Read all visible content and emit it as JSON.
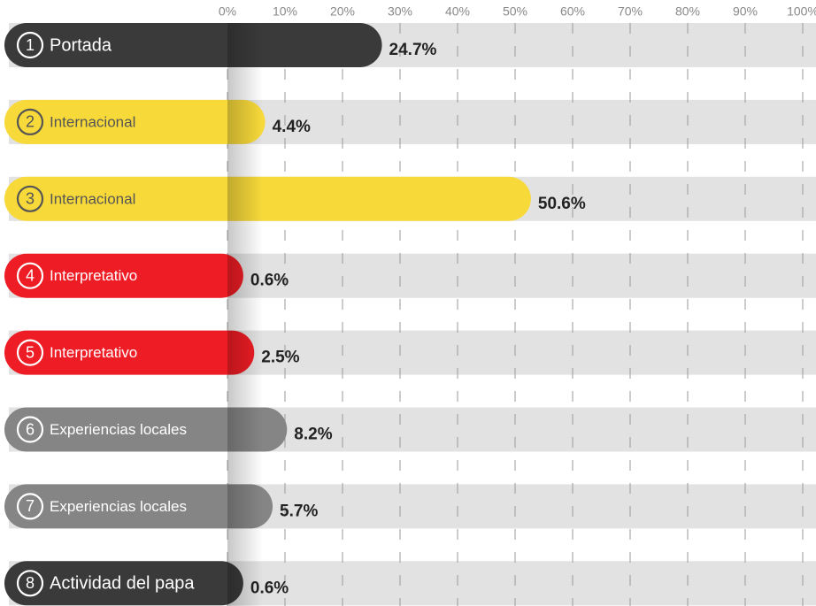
{
  "chart_data": {
    "type": "bar",
    "categories": [
      "Portada",
      "Internacional",
      "Internacional",
      "Interpretativo",
      "Interpretativo",
      "Experiencias locales",
      "Experiencias locales",
      "Actividad del papa"
    ],
    "badges": [
      "1",
      "2",
      "3",
      "4",
      "5",
      "6",
      "7",
      "8"
    ],
    "values": [
      24.7,
      4.4,
      50.6,
      0.6,
      2.5,
      8.2,
      5.7,
      0.6
    ],
    "value_labels": [
      "24.7%",
      "4.4%",
      "50.6%",
      "0.6%",
      "2.5%",
      "8.2%",
      "5.7%",
      "0.6%"
    ],
    "colors": [
      "#3a3a3a",
      "#f7d93a",
      "#f7d93a",
      "#ee1c24",
      "#ee1c24",
      "#858585",
      "#858585",
      "#3a3a3a"
    ],
    "label_colors": [
      "#ffffff",
      "#555555",
      "#555555",
      "#ffffff",
      "#ffffff",
      "#ffffff",
      "#ffffff",
      "#ffffff"
    ],
    "xlim": [
      0,
      100
    ],
    "xticks": [
      {
        "value": 0,
        "label": "0%"
      },
      {
        "value": 10,
        "label": "10%"
      },
      {
        "value": 20,
        "label": "20%"
      },
      {
        "value": 30,
        "label": "30%"
      },
      {
        "value": 40,
        "label": "40%"
      },
      {
        "value": 50,
        "label": "50%"
      },
      {
        "value": 60,
        "label": "60%"
      },
      {
        "value": 70,
        "label": "70%"
      },
      {
        "value": 80,
        "label": "80%"
      },
      {
        "value": 90,
        "label": "90%"
      },
      {
        "value": 100,
        "label": "100%"
      }
    ],
    "grid": true
  }
}
